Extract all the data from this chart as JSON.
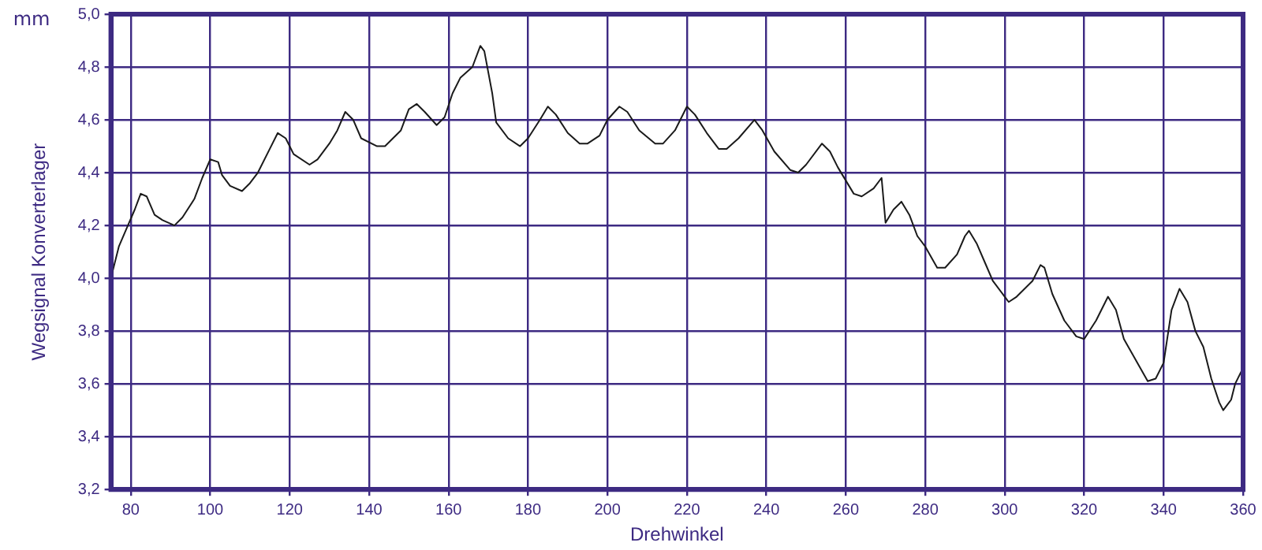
{
  "chart_data": {
    "type": "line",
    "xlabel": "Drehwinkel",
    "ylabel": "Wegsignal Konverterlager",
    "annotations": [
      "mm"
    ],
    "grid": true,
    "legend": false,
    "marker": "none",
    "line_style": "solid",
    "xlim": [
      75,
      360
    ],
    "xticks": [
      80,
      100,
      120,
      140,
      160,
      180,
      200,
      220,
      240,
      260,
      280,
      300,
      320,
      340,
      360
    ],
    "ylim": [
      3.2,
      5.0
    ],
    "yticks": [
      {
        "value": 3.2,
        "label": "3,2"
      },
      {
        "value": 3.4,
        "label": "3,4"
      },
      {
        "value": 3.6,
        "label": "3,6"
      },
      {
        "value": 3.8,
        "label": "3,8"
      },
      {
        "value": 4.0,
        "label": "4,0"
      },
      {
        "value": 4.2,
        "label": "4,2"
      },
      {
        "value": 4.4,
        "label": "4,4"
      },
      {
        "value": 4.6,
        "label": "4,6"
      },
      {
        "value": 4.8,
        "label": "4,8"
      },
      {
        "value": 5.0,
        "label": "5,0"
      }
    ],
    "x": [
      75,
      77,
      79,
      81,
      82.5,
      84,
      86,
      88,
      91,
      93,
      96,
      98,
      100,
      102,
      103,
      105,
      108,
      110,
      112,
      115,
      117,
      119,
      121,
      125,
      127,
      130,
      132,
      134,
      136,
      138,
      142,
      144,
      148,
      150,
      152,
      154,
      157,
      159,
      161,
      163,
      166,
      168,
      169,
      171,
      172,
      175,
      178,
      180,
      183,
      185,
      187,
      190,
      193,
      195,
      198,
      200,
      203,
      205,
      208,
      212,
      214,
      217,
      220,
      222,
      225,
      228,
      230,
      233,
      237,
      239,
      242,
      246,
      248,
      250,
      254,
      256,
      258,
      260,
      262,
      264,
      267,
      269,
      270,
      272,
      274,
      276,
      278,
      280,
      283,
      285,
      288,
      290,
      291,
      293,
      295,
      297,
      301,
      303,
      307,
      309,
      310,
      312,
      315,
      318,
      320,
      323,
      326,
      328,
      330,
      333,
      336,
      338,
      340,
      342,
      344,
      346,
      348,
      350,
      352,
      354,
      355,
      357,
      358,
      360
    ],
    "series": [
      {
        "color": "#1a1a1a",
        "values": [
          4.0,
          4.12,
          4.19,
          4.26,
          4.32,
          4.31,
          4.24,
          4.22,
          4.2,
          4.23,
          4.3,
          4.38,
          4.45,
          4.44,
          4.39,
          4.35,
          4.33,
          4.36,
          4.4,
          4.49,
          4.55,
          4.53,
          4.47,
          4.43,
          4.45,
          4.51,
          4.56,
          4.63,
          4.6,
          4.53,
          4.5,
          4.5,
          4.56,
          4.64,
          4.66,
          4.63,
          4.58,
          4.61,
          4.7,
          4.76,
          4.8,
          4.88,
          4.86,
          4.7,
          4.59,
          4.53,
          4.5,
          4.53,
          4.6,
          4.65,
          4.62,
          4.55,
          4.51,
          4.51,
          4.54,
          4.6,
          4.65,
          4.63,
          4.56,
          4.51,
          4.51,
          4.56,
          4.65,
          4.62,
          4.55,
          4.49,
          4.49,
          4.53,
          4.6,
          4.56,
          4.48,
          4.41,
          4.4,
          4.43,
          4.51,
          4.48,
          4.42,
          4.37,
          4.32,
          4.31,
          4.34,
          4.38,
          4.21,
          4.26,
          4.29,
          4.24,
          4.16,
          4.12,
          4.04,
          4.04,
          4.09,
          4.16,
          4.18,
          4.13,
          4.06,
          3.99,
          3.91,
          3.93,
          3.99,
          4.05,
          4.04,
          3.94,
          3.84,
          3.78,
          3.77,
          3.84,
          3.93,
          3.88,
          3.77,
          3.69,
          3.61,
          3.62,
          3.68,
          3.88,
          3.96,
          3.91,
          3.8,
          3.74,
          3.62,
          3.53,
          3.5,
          3.54,
          3.6,
          3.66
        ]
      }
    ]
  }
}
